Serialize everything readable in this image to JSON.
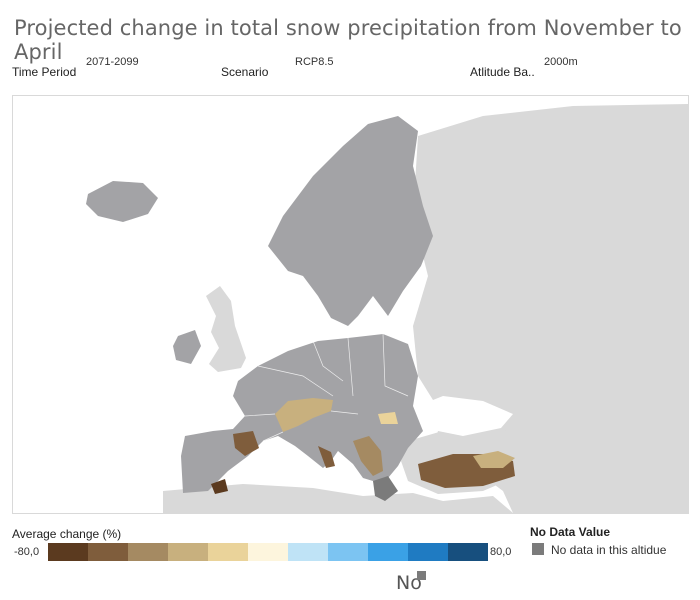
{
  "title": "Projected change in total snow precipitation from November to April",
  "filters": {
    "time_period": {
      "label": "Time Period",
      "value": "2071-2099"
    },
    "scenario": {
      "label": "Scenario",
      "value": "RCP8.5"
    },
    "altitude": {
      "label": "Atlitude Ba..",
      "value": "2000m"
    }
  },
  "map": {
    "colors": {
      "sea": "#ffffff",
      "outside": "#d9d9d9",
      "study_area": "#a3a3a6",
      "nodata": "#7b7b7b"
    }
  },
  "legend": {
    "title": "Average change (%)",
    "min_label": "-80,0",
    "max_label": "80,0",
    "scale_min": -80,
    "scale_max": 80,
    "colors": [
      "#5b3a1f",
      "#7f5d3c",
      "#a58a62",
      "#c8b07e",
      "#ead39a",
      "#fdf5dd",
      "#bfe3f6",
      "#7cc4f2",
      "#3aa1e6",
      "#1f7bc2",
      "#174f7e"
    ]
  },
  "no_data": {
    "title": "No Data Value",
    "label": "No data in this altidue"
  },
  "fragment_label": "No"
}
